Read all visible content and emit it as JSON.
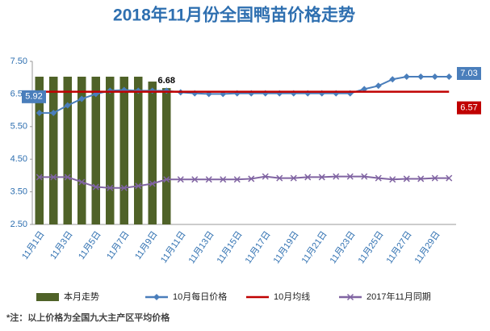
{
  "chart_data": {
    "type": "combo",
    "title": "2018年11月份全国鸭苗价格走势",
    "footnote": "*注：以上价格为全国九大主产区平均价格",
    "categories": [
      "11月1日",
      null,
      "11月3日",
      null,
      "11月5日",
      null,
      "11月7日",
      null,
      "11月9日",
      null,
      "11月11日",
      null,
      "11月13日",
      null,
      "11月15日",
      null,
      "11月17日",
      null,
      "11月19日",
      null,
      "11月21日",
      null,
      "11月23日",
      null,
      "11月25日",
      null,
      "11月27日",
      null,
      "11月29日",
      null
    ],
    "ylim": [
      2.5,
      7.5
    ],
    "yticks": [
      {
        "value": 2.5,
        "label": "2.50"
      },
      {
        "value": 3.5,
        "label": "3.50"
      },
      {
        "value": 4.5,
        "label": "4.50"
      },
      {
        "value": 5.5,
        "label": "5.50"
      },
      {
        "value": 6.5,
        "label": "6.50"
      },
      {
        "value": 7.5,
        "label": "7.50"
      }
    ],
    "series": [
      {
        "name": "本月走势",
        "kind": "bar",
        "color": "#4f6228",
        "values": [
          7.03,
          7.03,
          7.03,
          7.03,
          7.03,
          7.03,
          7.03,
          7.03,
          6.88,
          6.68,
          null,
          null,
          null,
          null,
          null,
          null,
          null,
          null,
          null,
          null,
          null,
          null,
          null,
          null,
          null,
          null,
          null,
          null,
          null,
          null
        ]
      },
      {
        "name": "10月每日价格",
        "kind": "line",
        "marker": "diamond",
        "color": "#4a7ebb",
        "values": [
          5.92,
          5.92,
          6.15,
          6.35,
          6.5,
          6.6,
          6.62,
          6.6,
          6.6,
          6.6,
          6.55,
          6.52,
          6.5,
          6.5,
          6.52,
          6.52,
          6.52,
          6.52,
          6.52,
          6.52,
          6.52,
          6.52,
          6.52,
          6.65,
          6.75,
          6.95,
          7.03,
          7.03,
          7.03,
          7.03
        ]
      },
      {
        "name": "10月均线",
        "kind": "line",
        "marker": "none",
        "color": "#c00000",
        "values": [
          6.57,
          6.57,
          6.57,
          6.57,
          6.57,
          6.57,
          6.57,
          6.57,
          6.57,
          6.57,
          6.57,
          6.57,
          6.57,
          6.57,
          6.57,
          6.57,
          6.57,
          6.57,
          6.57,
          6.57,
          6.57,
          6.57,
          6.57,
          6.57,
          6.57,
          6.57,
          6.57,
          6.57,
          6.57,
          6.57
        ]
      },
      {
        "name": "2017年11月同期",
        "kind": "line",
        "marker": "x",
        "color": "#8064a2",
        "values": [
          3.95,
          3.95,
          3.95,
          3.8,
          3.65,
          3.62,
          3.62,
          3.68,
          3.75,
          3.88,
          3.88,
          3.88,
          3.88,
          3.88,
          3.88,
          3.9,
          3.97,
          3.92,
          3.92,
          3.95,
          3.95,
          3.97,
          3.97,
          3.97,
          3.92,
          3.88,
          3.9,
          3.9,
          3.92,
          3.92
        ]
      }
    ]
  }
}
